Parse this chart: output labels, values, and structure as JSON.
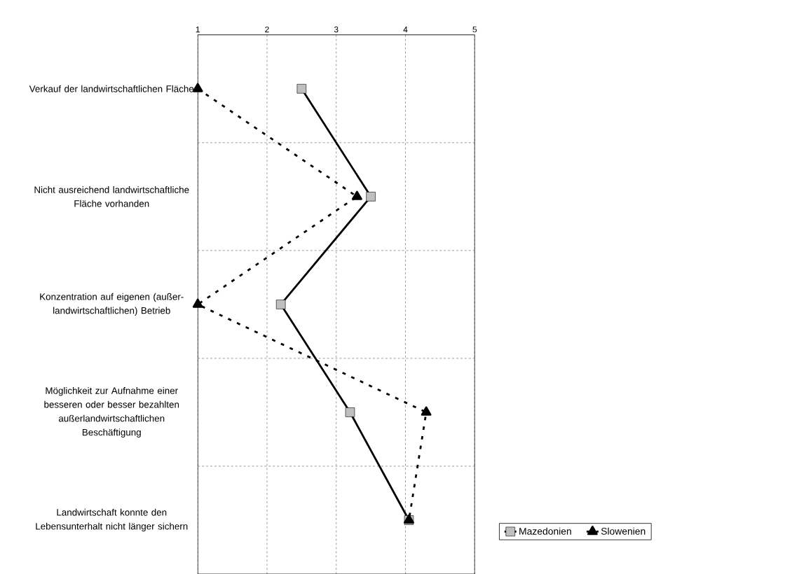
{
  "chart_data": {
    "type": "line",
    "orientation": "horizontal",
    "categories": [
      "Verkauf der landwirtschaftlichen Fläche",
      "Nicht ausreichend landwirtschaftliche Fläche vorhanden",
      "Konzentration auf eigenen (außer-landwirtschaftlichen) Betrieb",
      "Möglichkeit zur Aufnahme einer besseren oder besser bezahlten außerlandwirtschaftlichen Beschäftigung",
      "Landwirtschaft konnte den Lebensunterhalt nicht länger sichern"
    ],
    "series": [
      {
        "name": "Mazedonien",
        "color": "#000000",
        "marker": "square",
        "line_style": "solid",
        "values": [
          2.5,
          3.5,
          2.2,
          3.2,
          4.05
        ]
      },
      {
        "name": "Slowenien",
        "color": "#000000",
        "marker": "triangle",
        "line_style": "dashed",
        "values": [
          1.0,
          3.3,
          1.0,
          4.3,
          4.05
        ]
      }
    ],
    "xlim": [
      1,
      5
    ],
    "xticks": [
      1,
      2,
      3,
      4,
      5
    ],
    "grid": true,
    "legend": "bottom right"
  }
}
